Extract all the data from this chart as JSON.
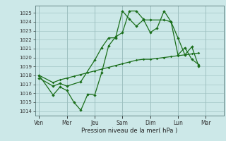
{
  "xlabel": "Pression niveau de la mer( hPa )",
  "background_color": "#cce8e8",
  "grid_color": "#aacccc",
  "line_color": "#1a6e1a",
  "ylim": [
    1013.5,
    1025.8
  ],
  "yticks": [
    1014,
    1015,
    1016,
    1017,
    1018,
    1019,
    1020,
    1021,
    1022,
    1023,
    1024,
    1025
  ],
  "day_labels": [
    "Ven",
    "Mer",
    "Jeu",
    "Sam",
    "Dim",
    "Lun",
    "Mar"
  ],
  "day_tick_x": [
    0,
    2,
    4,
    6,
    8,
    10,
    12
  ],
  "xlim": [
    -0.3,
    13.3
  ],
  "line1_x": [
    0,
    1,
    1.5,
    2,
    2.5,
    3,
    3.5,
    4,
    4.5,
    5,
    5.5,
    6,
    6.5,
    7,
    7.5,
    8,
    8.5,
    9,
    9.5,
    10,
    10.5,
    11,
    11.5
  ],
  "line1_y": [
    1018.0,
    1015.8,
    1016.7,
    1016.3,
    1015.0,
    1014.1,
    1015.9,
    1015.8,
    1018.3,
    1021.3,
    1022.3,
    1022.8,
    1025.2,
    1025.2,
    1024.3,
    1022.8,
    1023.3,
    1025.2,
    1024.0,
    1022.2,
    1020.3,
    1021.2,
    1019.0
  ],
  "line2_x": [
    0,
    1,
    1.5,
    2,
    3,
    4,
    4.5,
    5,
    5.5,
    6,
    6.5,
    7,
    7.5,
    8,
    9,
    9.5,
    10,
    10.5,
    11,
    11.5
  ],
  "line2_y": [
    1017.7,
    1016.8,
    1017.1,
    1016.8,
    1017.3,
    1019.7,
    1021.1,
    1022.2,
    1022.2,
    1025.2,
    1024.3,
    1023.5,
    1024.2,
    1024.2,
    1024.2,
    1024.0,
    1020.3,
    1021.1,
    1019.8,
    1019.2
  ],
  "line3_x": [
    0,
    1,
    1.5,
    2,
    2.5,
    3,
    3.5,
    4,
    4.5,
    5,
    5.5,
    6,
    6.5,
    7,
    7.5,
    8,
    8.5,
    9,
    9.5,
    10,
    10.5,
    11,
    11.5
  ],
  "line3_y": [
    1018.0,
    1017.2,
    1017.5,
    1017.7,
    1017.9,
    1018.1,
    1018.3,
    1018.5,
    1018.7,
    1018.9,
    1019.1,
    1019.3,
    1019.5,
    1019.7,
    1019.8,
    1019.8,
    1019.9,
    1020.0,
    1020.1,
    1020.2,
    1020.3,
    1020.4,
    1020.5
  ]
}
